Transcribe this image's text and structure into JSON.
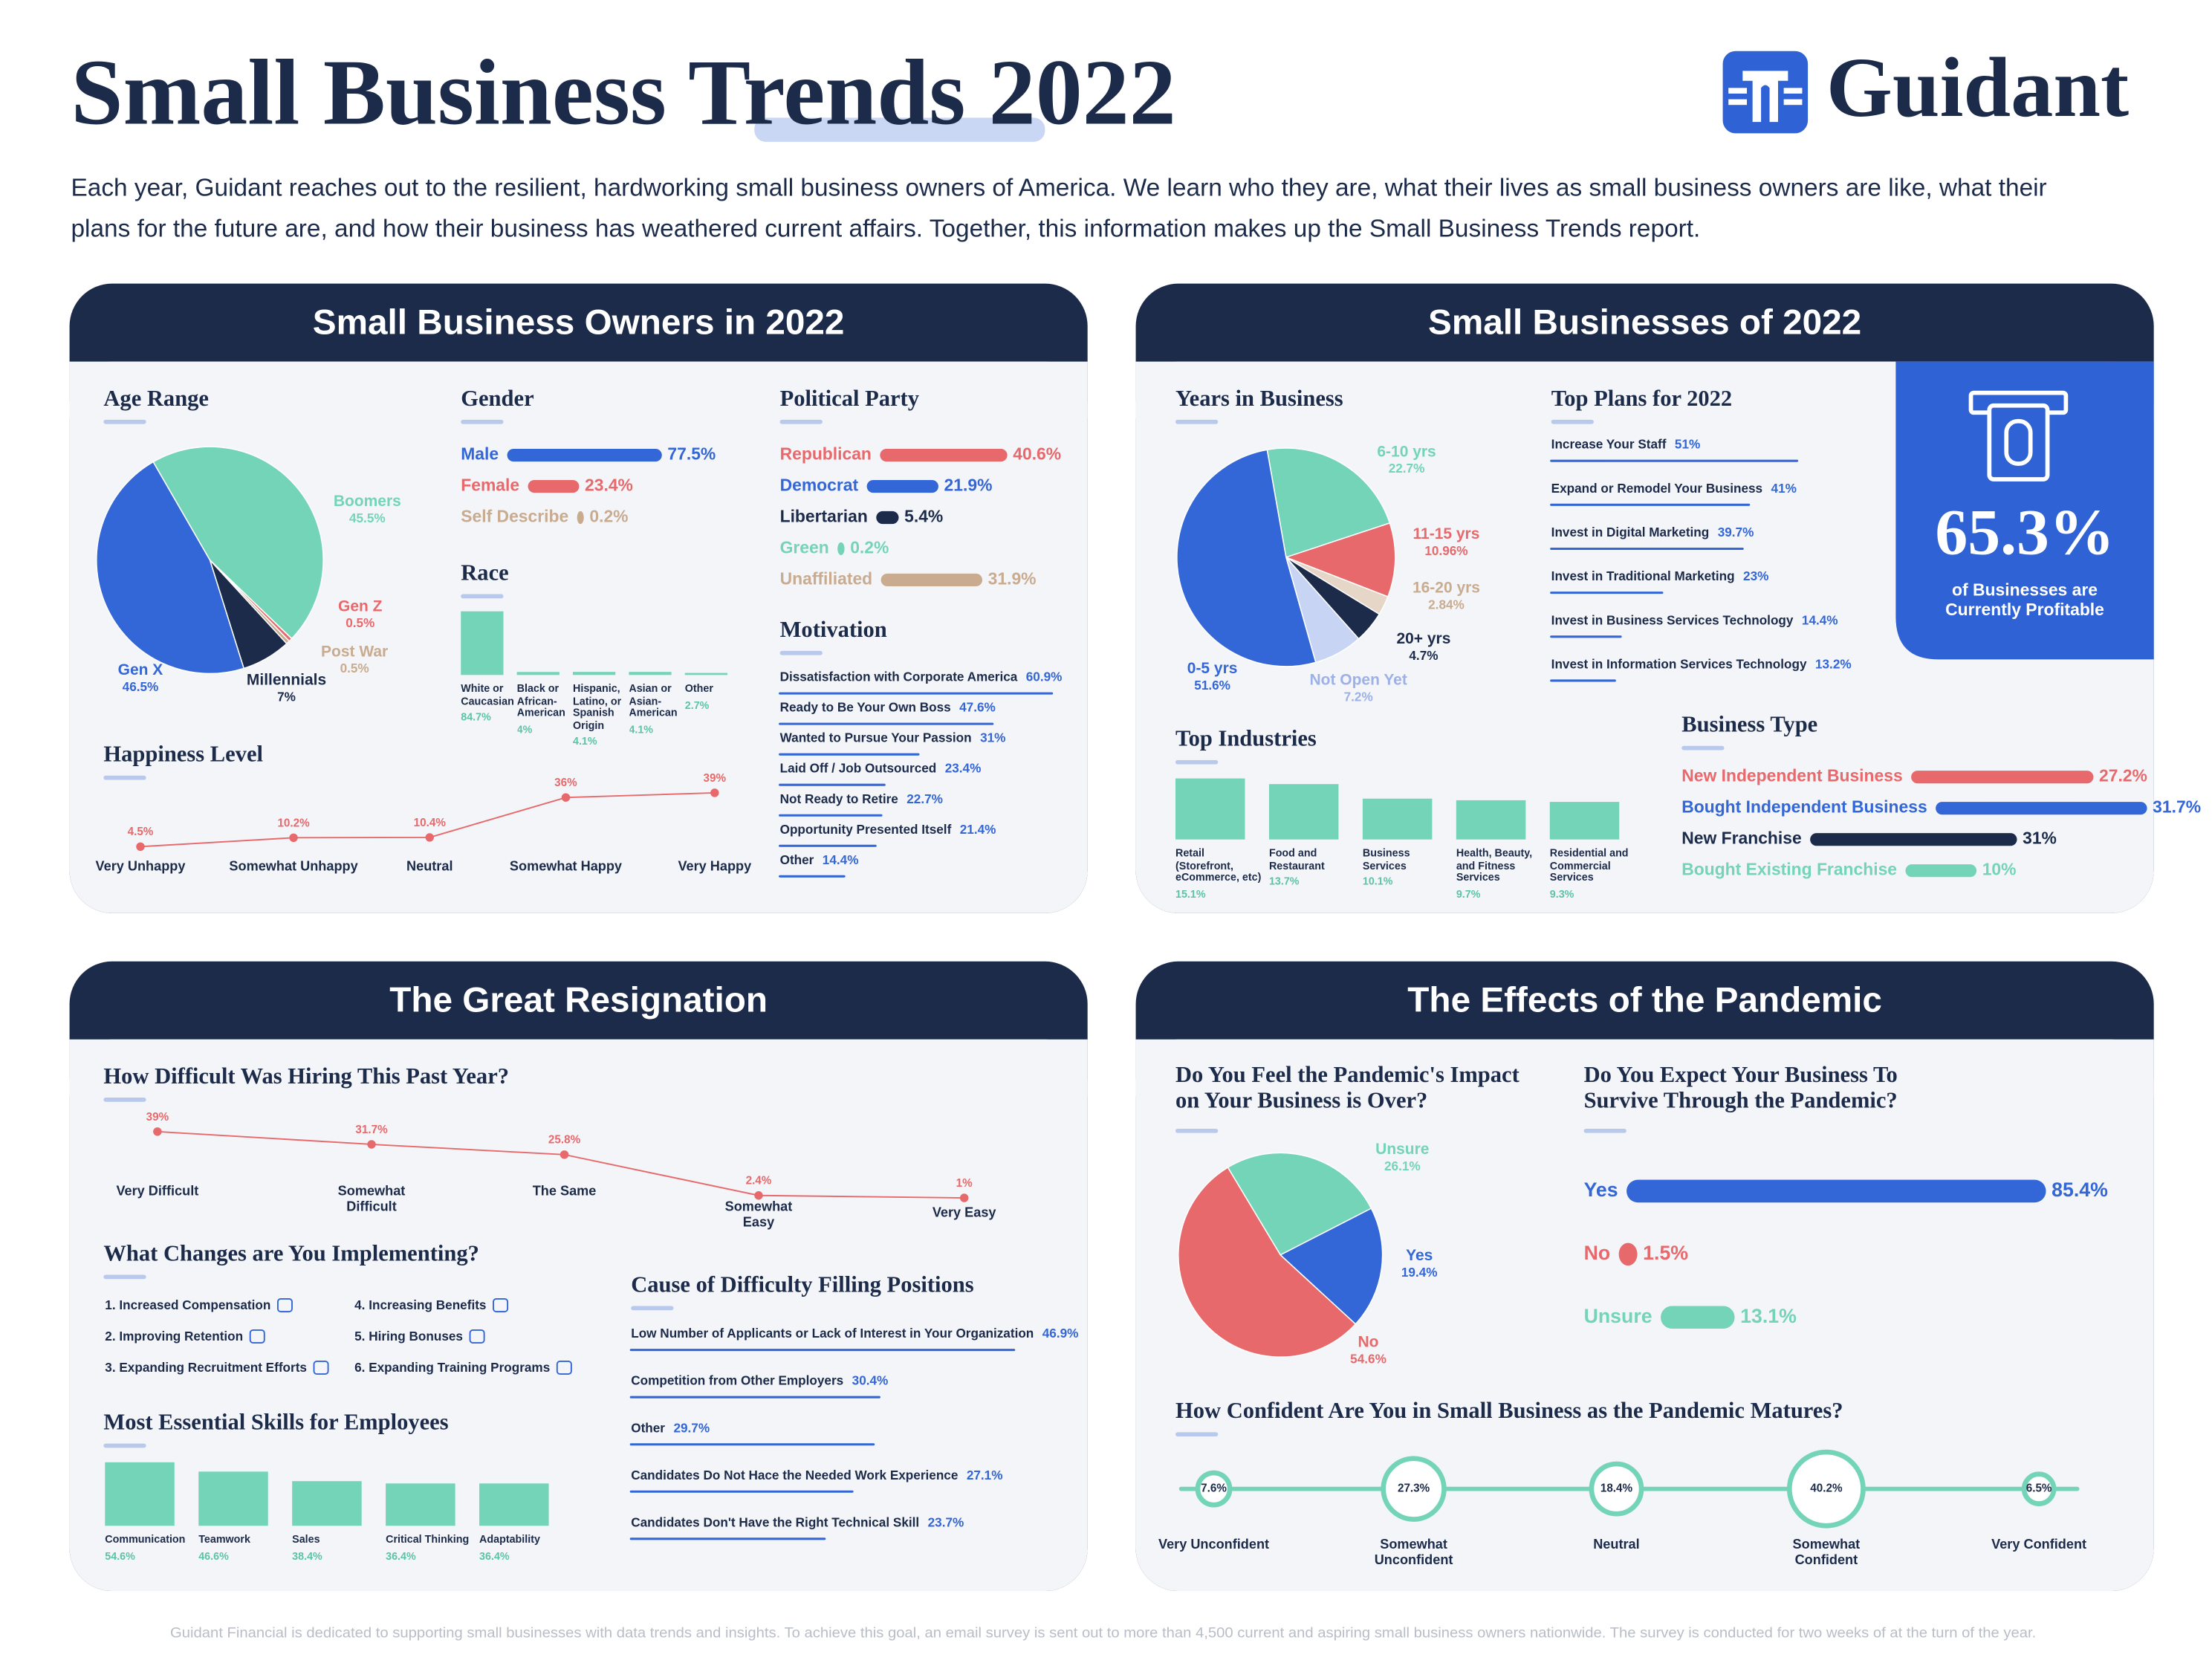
{
  "header": {
    "title": "Small Business Trends 2022",
    "logo": "Guidant",
    "intro": "Each year, Guidant reaches out to the resilient, hardworking small business owners of America. We learn who they are, what their lives as small business owners are like, what their plans for the future are, and how their business has weathered current affairs. Together, this information makes up the Small Business Trends report."
  },
  "sections": [
    "Small Business Owners in 2022",
    "Small Businesses of 2022",
    "The Great Resignation",
    "The Effects of the Pandemic"
  ],
  "stat": {
    "label": "65.3%",
    "caption": "of Businesses are Currently Profitable"
  },
  "changes": {
    "title": "What Changes are You Implementing?",
    "items": [
      "1. Increased Compensation",
      "2. Improving Retention",
      "3. Expanding Recruitment Efforts",
      "4. Increasing Benefits",
      "5. Hiring Bonuses",
      "6. Expanding Training Programs"
    ]
  },
  "chart_data": [
    {
      "type": "pie",
      "title": "Age Range",
      "categories": [
        "Boomers",
        "Gen Z",
        "Post War",
        "Millennials",
        "Gen X"
      ],
      "values": [
        45.5,
        0.5,
        0.5,
        7,
        46.5
      ],
      "value_labels": [
        "45.5%",
        "0.5%",
        "0.5%",
        "7%",
        "46.5%"
      ],
      "colors": [
        "#74d4b7",
        "#e8696b",
        "#c9ab8f",
        "#1c2b4a",
        "#3366d6"
      ]
    },
    {
      "type": "bar",
      "title": "Gender",
      "categories": [
        "Male",
        "Female",
        "Self Describe"
      ],
      "values": [
        77.5,
        23.4,
        0.2
      ],
      "value_labels": [
        "77.5%",
        "23.4%",
        "0.2%"
      ],
      "colors": [
        "#3366d6",
        "#e8696b",
        "#c9ab8f"
      ]
    },
    {
      "type": "column",
      "title": "Race",
      "categories": [
        "White or Caucasian",
        "Black or African-American",
        "Hispanic, Latino, or Spanish Origin",
        "Asian or Asian-American",
        "Other"
      ],
      "values": [
        84.7,
        4,
        4.1,
        4.1,
        2.7
      ],
      "value_labels": [
        "84.7%",
        "4%",
        "4.1%",
        "4.1%",
        "2.7%"
      ],
      "color": "#74d4b7"
    },
    {
      "type": "bar",
      "title": "Political Party",
      "categories": [
        "Republican",
        "Democrat",
        "Libertarian",
        "Green",
        "Unaffiliated"
      ],
      "values": [
        40.6,
        21.9,
        5.4,
        0.2,
        31.9
      ],
      "value_labels": [
        "40.6%",
        "21.9%",
        "5.4%",
        "0.2%",
        "31.9%"
      ],
      "colors": [
        "#e8696b",
        "#3366d6",
        "#1c2b4a",
        "#74d4b7",
        "#c9ab8f"
      ]
    },
    {
      "type": "bar",
      "thin": true,
      "title": "Motivation",
      "categories": [
        "Dissatisfaction with Corporate America",
        "Ready to Be Your Own Boss",
        "Wanted to Pursue Your Passion",
        "Laid Off / Job Outsourced",
        "Not Ready to Retire",
        "Opportunity Presented Itself",
        "Other"
      ],
      "values": [
        60.9,
        47.6,
        31,
        23.4,
        22.7,
        21.4,
        14.4
      ],
      "value_labels": [
        "60.9%",
        "47.6%",
        "31%",
        "23.4%",
        "22.7%",
        "21.4%",
        "14.4%"
      ],
      "color": "#3366d6"
    },
    {
      "type": "line",
      "title": "Happiness Level",
      "categories": [
        "Very Unhappy",
        "Somewhat Unhappy",
        "Neutral",
        "Somewhat Happy",
        "Very Happy"
      ],
      "values": [
        4.5,
        10.2,
        10.4,
        36,
        39
      ],
      "value_labels": [
        "4.5%",
        "10.2%",
        "10.4%",
        "36%",
        "39%"
      ],
      "color": "#e8696b"
    },
    {
      "type": "pie",
      "title": "Years in Business",
      "categories": [
        "6-10 yrs",
        "11-15 yrs",
        "16-20 yrs",
        "20+ yrs",
        "Not Open Yet",
        "0-5 yrs"
      ],
      "values": [
        22.7,
        10.96,
        2.84,
        4.7,
        7.2,
        51.6
      ],
      "value_labels": [
        "22.7%",
        "10.96%",
        "2.84%",
        "4.7%",
        "7.2%",
        "51.6%"
      ],
      "colors": [
        "#74d4b7",
        "#e8696b",
        "#e6d6c8",
        "#1c2b4a",
        "#c7d4f4",
        "#3366d6"
      ],
      "label_colors": [
        "#74d4b7",
        "#e8696b",
        "#c9ab8f",
        "#1c2b4a",
        "#9db1e6",
        "#3366d6"
      ]
    },
    {
      "type": "bar",
      "thin": true,
      "title": "Top Plans for 2022",
      "categories": [
        "Increase Your Staff",
        "Expand or Remodel Your Business",
        "Invest in Digital Marketing",
        "Invest in Traditional Marketing",
        "Invest in Business Services Technology",
        "Invest in Information Services Technology"
      ],
      "values": [
        51,
        41,
        39.7,
        23,
        14.4,
        13.2
      ],
      "value_labels": [
        "51%",
        "41%",
        "39.7%",
        "23%",
        "14.4%",
        "13.2%"
      ],
      "color": "#3366d6"
    },
    {
      "type": "column",
      "title": "Top Industries",
      "categories": [
        "Retail (Storefront, eCommerce, etc)",
        "Food and Restaurant",
        "Business Services",
        "Health, Beauty, and Fitness Services",
        "Residential and Commercial Services"
      ],
      "values": [
        15.1,
        13.7,
        10.1,
        9.7,
        9.3
      ],
      "value_labels": [
        "15.1%",
        "13.7%",
        "10.1%",
        "9.7%",
        "9.3%"
      ],
      "color": "#74d4b7"
    },
    {
      "type": "bar",
      "title": "Business Type",
      "categories": [
        "New Independent Business",
        "Bought Independent Business",
        "New Franchise",
        "Bought Existing Franchise"
      ],
      "values": [
        27.2,
        31.7,
        31,
        10
      ],
      "value_labels": [
        "27.2%",
        "31.7%",
        "31%",
        "10%"
      ],
      "colors": [
        "#e8696b",
        "#3366d6",
        "#1c2b4a",
        "#74d4b7"
      ]
    },
    {
      "type": "line",
      "title": "How Difficult Was Hiring This Past Year?",
      "categories": [
        "Very Difficult",
        "Somewhat Difficult",
        "The Same",
        "Somewhat Easy",
        "Very Easy"
      ],
      "values": [
        39,
        31.7,
        25.8,
        2.4,
        1
      ],
      "value_labels": [
        "39%",
        "31.7%",
        "25.8%",
        "2.4%",
        "1%"
      ],
      "color": "#e8696b"
    },
    {
      "type": "column",
      "title": "Most Essential Skills for Employees",
      "categories": [
        "Communication",
        "Teamwork",
        "Sales",
        "Critical Thinking",
        "Adaptability"
      ],
      "values": [
        54.6,
        46.6,
        38.4,
        36.4,
        36.4
      ],
      "value_labels": [
        "54.6%",
        "46.6%",
        "38.4%",
        "36.4%",
        "36.4%"
      ],
      "color": "#74d4b7"
    },
    {
      "type": "bar",
      "thin": true,
      "title": "Cause of Difficulty Filling Positions",
      "categories": [
        "Low Number of Applicants or Lack of Interest in Your Organization",
        "Competition from Other Employers",
        "Other",
        "Candidates Do Not Hace the Needed Work Experience",
        "Candidates Don't Have the Right Technical Skill"
      ],
      "values": [
        46.9,
        30.4,
        29.7,
        27.1,
        23.7
      ],
      "value_labels": [
        "46.9%",
        "30.4%",
        "29.7%",
        "27.1%",
        "23.7%"
      ],
      "color": "#3366d6"
    },
    {
      "type": "pie",
      "title": "Do You Feel the Pandemic's Impact on Your Business is Over?",
      "categories": [
        "Unsure",
        "Yes",
        "No"
      ],
      "values": [
        26.1,
        19.4,
        54.6
      ],
      "value_labels": [
        "26.1%",
        "19.4%",
        "54.6%"
      ],
      "colors": [
        "#74d4b7",
        "#3366d6",
        "#e8696b"
      ]
    },
    {
      "type": "bar",
      "title": "Do You Expect Your Business To Survive Through the Pandemic?",
      "categories": [
        "Yes",
        "No",
        "Unsure"
      ],
      "values": [
        85.4,
        1.5,
        13.1
      ],
      "value_labels": [
        "85.4%",
        "1.5%",
        "13.1%"
      ],
      "colors": [
        "#3366d6",
        "#e8696b",
        "#74d4b7"
      ]
    },
    {
      "type": "bubble",
      "title": "How Confident Are You in Small Business as the Pandemic Matures?",
      "categories": [
        "Very Unconfident",
        "Somewhat Unconfident",
        "Neutral",
        "Somewhat Confident",
        "Very Confident"
      ],
      "values": [
        7.6,
        27.3,
        18.4,
        40.2,
        6.5
      ],
      "value_labels": [
        "7.6%",
        "27.3%",
        "18.4%",
        "40.2%",
        "6.5%"
      ],
      "color": "#74d4b7"
    }
  ],
  "footer": "Guidant Financial is dedicated to supporting small businesses with data trends and insights. To achieve this goal, an email survey is sent out to more than 4,500 current and aspiring small business owners nationwide. The survey is conducted for two weeks of at the turn of the year."
}
